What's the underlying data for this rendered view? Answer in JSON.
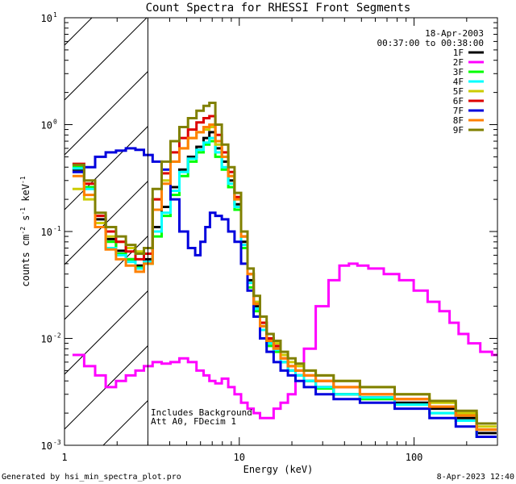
{
  "chart_data": {
    "type": "line",
    "title": "Count Spectra for RHESSI Front Segments",
    "xlabel": "Energy (keV)",
    "ylabel_parts": {
      "pre": "counts cm",
      "exp1": "-2",
      "mid1": " s",
      "exp2": "-1",
      "mid2": " keV",
      "exp3": "-1"
    },
    "x_scale": "log",
    "y_scale": "log",
    "xlim": [
      1.0,
      300.0
    ],
    "ylim": [
      0.001,
      10.0
    ],
    "x_tick_labels": [
      {
        "value": 1,
        "label": "1"
      },
      {
        "value": 10,
        "label": "10"
      },
      {
        "value": 100,
        "label": "100"
      }
    ],
    "y_tick_labels": [
      {
        "value": 0.001,
        "base": "10",
        "exp": "-3"
      },
      {
        "value": 0.01,
        "base": "10",
        "exp": "-2"
      },
      {
        "value": 0.1,
        "base": "10",
        "exp": "-1"
      },
      {
        "value": 1,
        "base": "10",
        "exp": "0"
      },
      {
        "value": 10,
        "base": "10",
        "exp": "1"
      }
    ],
    "hatched_region": [
      1.0,
      3.0
    ],
    "annotations": {
      "date": "18-Apr-2003",
      "time_range": "00:37:00 to 00:38:00",
      "note1": "Includes Background",
      "note2": "Att A0, FDecim 1"
    },
    "series": [
      {
        "name": "1F",
        "color": "#000000",
        "x": [
          1.2,
          1.4,
          1.6,
          1.85,
          2.1,
          2.4,
          2.7,
          3.0,
          3.4,
          3.8,
          4.3,
          4.8,
          5.4,
          6.0,
          6.5,
          7.0,
          7.6,
          8.3,
          9.0,
          9.8,
          10.7,
          11.6,
          12.6,
          13.7,
          15.0,
          16.5,
          18.0,
          20.0,
          22.0,
          25.0,
          30.0,
          40.0,
          60.0,
          100.0,
          150.0,
          200.0,
          260.0
        ],
        "y": [
          0.38,
          0.26,
          0.13,
          0.085,
          0.066,
          0.055,
          0.048,
          0.055,
          0.11,
          0.17,
          0.26,
          0.38,
          0.5,
          0.62,
          0.75,
          0.85,
          0.6,
          0.45,
          0.3,
          0.18,
          0.08,
          0.035,
          0.02,
          0.013,
          0.009,
          0.008,
          0.006,
          0.005,
          0.0045,
          0.004,
          0.0035,
          0.003,
          0.0028,
          0.0025,
          0.0022,
          0.0018,
          0.0013
        ]
      },
      {
        "name": "2F",
        "color": "#ff00ff",
        "x": [
          1.2,
          1.4,
          1.6,
          1.85,
          2.1,
          2.4,
          2.7,
          3.0,
          3.4,
          3.8,
          4.3,
          4.8,
          5.4,
          6.0,
          6.5,
          7.0,
          7.6,
          8.3,
          9.0,
          9.8,
          10.7,
          11.6,
          12.6,
          13.7,
          15.0,
          16.5,
          18.0,
          20.0,
          22.0,
          25.0,
          30.0,
          35.0,
          40.0,
          45.0,
          50.0,
          60.0,
          75.0,
          90.0,
          110.0,
          130.0,
          150.0,
          170.0,
          190.0,
          220.0,
          260.0,
          300.0
        ],
        "y": [
          0.007,
          0.0055,
          0.0045,
          0.0035,
          0.004,
          0.0045,
          0.005,
          0.0055,
          0.006,
          0.0058,
          0.006,
          0.0065,
          0.006,
          0.005,
          0.0045,
          0.004,
          0.0038,
          0.0042,
          0.0035,
          0.003,
          0.0025,
          0.0022,
          0.002,
          0.0018,
          0.0018,
          0.0022,
          0.0025,
          0.003,
          0.0045,
          0.008,
          0.02,
          0.035,
          0.048,
          0.05,
          0.048,
          0.045,
          0.04,
          0.035,
          0.028,
          0.022,
          0.018,
          0.014,
          0.011,
          0.009,
          0.0075,
          0.007
        ]
      },
      {
        "name": "3F",
        "color": "#00ff00",
        "x": [
          1.2,
          1.4,
          1.6,
          1.85,
          2.1,
          2.4,
          2.7,
          3.0,
          3.4,
          3.8,
          4.3,
          4.8,
          5.4,
          6.0,
          6.5,
          7.0,
          7.6,
          8.3,
          9.0,
          9.8,
          10.7,
          11.6,
          12.6,
          13.7,
          15.0,
          16.5,
          18.0,
          20.0,
          22.0,
          25.0,
          30.0,
          40.0,
          60.0,
          100.0,
          150.0,
          200.0,
          260.0
        ],
        "y": [
          0.4,
          0.26,
          0.12,
          0.08,
          0.062,
          0.055,
          0.046,
          0.05,
          0.09,
          0.14,
          0.22,
          0.33,
          0.45,
          0.55,
          0.65,
          0.7,
          0.5,
          0.38,
          0.26,
          0.16,
          0.07,
          0.03,
          0.018,
          0.012,
          0.0085,
          0.0075,
          0.006,
          0.005,
          0.0045,
          0.004,
          0.0034,
          0.003,
          0.0027,
          0.0024,
          0.002,
          0.0017,
          0.0012
        ]
      },
      {
        "name": "4F",
        "color": "#00ffff",
        "x": [
          1.2,
          1.4,
          1.6,
          1.85,
          2.1,
          2.4,
          2.7,
          3.0,
          3.4,
          3.8,
          4.3,
          4.8,
          5.4,
          6.0,
          6.5,
          7.0,
          7.6,
          8.3,
          9.0,
          9.8,
          10.7,
          11.6,
          12.6,
          13.7,
          15.0,
          16.5,
          18.0,
          20.0,
          22.0,
          25.0,
          30.0,
          40.0,
          60.0,
          100.0,
          150.0,
          200.0,
          260.0
        ],
        "y": [
          0.39,
          0.25,
          0.12,
          0.07,
          0.06,
          0.052,
          0.045,
          0.052,
          0.1,
          0.15,
          0.24,
          0.36,
          0.48,
          0.58,
          0.68,
          0.75,
          0.55,
          0.4,
          0.28,
          0.17,
          0.075,
          0.033,
          0.019,
          0.012,
          0.009,
          0.0078,
          0.006,
          0.005,
          0.0045,
          0.004,
          0.0035,
          0.003,
          0.0028,
          0.0024,
          0.002,
          0.0017,
          0.0012
        ]
      },
      {
        "name": "5F",
        "color": "#cccc00",
        "x": [
          1.2,
          1.4,
          1.6,
          1.85,
          2.1,
          2.4,
          2.7,
          3.0,
          3.4,
          3.8,
          4.3,
          4.8,
          5.4,
          6.0,
          6.5,
          7.0,
          7.6,
          8.3,
          9.0,
          9.8,
          10.7,
          11.6,
          12.6,
          13.7,
          15.0,
          16.5,
          18.0,
          20.0,
          22.0,
          25.0,
          30.0,
          40.0,
          60.0,
          100.0,
          150.0,
          200.0,
          260.0
        ],
        "y": [
          0.25,
          0.2,
          0.12,
          0.09,
          0.08,
          0.07,
          0.065,
          0.07,
          0.2,
          0.3,
          0.45,
          0.6,
          0.75,
          0.85,
          0.9,
          0.95,
          0.65,
          0.5,
          0.33,
          0.2,
          0.09,
          0.04,
          0.022,
          0.014,
          0.01,
          0.009,
          0.007,
          0.006,
          0.0055,
          0.005,
          0.0045,
          0.004,
          0.0035,
          0.003,
          0.0025,
          0.002,
          0.0015
        ]
      },
      {
        "name": "6F",
        "color": "#dd0000",
        "x": [
          1.2,
          1.4,
          1.6,
          1.85,
          2.1,
          2.4,
          2.7,
          3.0,
          3.4,
          3.8,
          4.3,
          4.8,
          5.4,
          6.0,
          6.5,
          7.0,
          7.6,
          8.3,
          9.0,
          9.8,
          10.7,
          11.6,
          12.6,
          13.7,
          15.0,
          16.5,
          18.0,
          20.0,
          22.0,
          25.0,
          30.0,
          40.0,
          60.0,
          100.0,
          150.0,
          200.0,
          260.0
        ],
        "y": [
          0.43,
          0.28,
          0.14,
          0.1,
          0.08,
          0.065,
          0.055,
          0.062,
          0.2,
          0.35,
          0.55,
          0.75,
          0.9,
          1.05,
          1.15,
          1.2,
          0.8,
          0.55,
          0.36,
          0.21,
          0.09,
          0.04,
          0.021,
          0.014,
          0.01,
          0.0085,
          0.0065,
          0.0055,
          0.005,
          0.0045,
          0.004,
          0.0035,
          0.003,
          0.0027,
          0.0023,
          0.0019,
          0.0014
        ]
      },
      {
        "name": "7F",
        "color": "#0000dd",
        "x": [
          1.2,
          1.4,
          1.6,
          1.85,
          2.1,
          2.4,
          2.7,
          3.0,
          3.4,
          3.8,
          4.3,
          4.8,
          5.4,
          5.8,
          6.2,
          6.6,
          7.0,
          7.6,
          8.3,
          9.0,
          9.8,
          10.7,
          11.6,
          12.6,
          13.7,
          15.0,
          16.5,
          18.0,
          20.0,
          22.0,
          25.0,
          30.0,
          40.0,
          60.0,
          100.0,
          150.0,
          200.0,
          260.0
        ],
        "y": [
          0.36,
          0.4,
          0.5,
          0.55,
          0.57,
          0.6,
          0.58,
          0.52,
          0.45,
          0.38,
          0.2,
          0.1,
          0.07,
          0.06,
          0.08,
          0.11,
          0.15,
          0.14,
          0.13,
          0.1,
          0.08,
          0.05,
          0.028,
          0.016,
          0.01,
          0.0075,
          0.006,
          0.005,
          0.0045,
          0.004,
          0.0035,
          0.003,
          0.0027,
          0.0025,
          0.0022,
          0.0018,
          0.0015,
          0.0012
        ]
      },
      {
        "name": "8F",
        "color": "#ff8000",
        "x": [
          1.2,
          1.4,
          1.6,
          1.85,
          2.1,
          2.4,
          2.7,
          3.0,
          3.4,
          3.8,
          4.3,
          4.8,
          5.4,
          6.0,
          6.5,
          7.0,
          7.6,
          8.3,
          9.0,
          9.8,
          10.7,
          11.6,
          12.6,
          13.7,
          15.0,
          16.5,
          18.0,
          20.0,
          22.0,
          25.0,
          30.0,
          40.0,
          60.0,
          100.0,
          150.0,
          200.0,
          260.0
        ],
        "y": [
          0.33,
          0.22,
          0.11,
          0.068,
          0.055,
          0.048,
          0.042,
          0.05,
          0.16,
          0.28,
          0.45,
          0.6,
          0.75,
          0.85,
          0.95,
          1.0,
          0.7,
          0.5,
          0.33,
          0.2,
          0.09,
          0.04,
          0.021,
          0.013,
          0.0095,
          0.008,
          0.0065,
          0.0055,
          0.005,
          0.0045,
          0.004,
          0.0035,
          0.003,
          0.0027,
          0.0023,
          0.0019,
          0.0014
        ]
      },
      {
        "name": "9F",
        "color": "#808000",
        "x": [
          1.2,
          1.4,
          1.6,
          1.85,
          2.1,
          2.4,
          2.7,
          3.0,
          3.4,
          3.8,
          4.3,
          4.8,
          5.4,
          6.0,
          6.5,
          7.0,
          7.6,
          8.3,
          9.0,
          9.8,
          10.7,
          11.6,
          12.6,
          13.7,
          15.0,
          16.5,
          18.0,
          20.0,
          22.0,
          25.0,
          30.0,
          40.0,
          60.0,
          100.0,
          150.0,
          200.0,
          260.0
        ],
        "y": [
          0.42,
          0.3,
          0.15,
          0.11,
          0.09,
          0.075,
          0.062,
          0.07,
          0.25,
          0.45,
          0.7,
          0.95,
          1.15,
          1.35,
          1.5,
          1.6,
          1.0,
          0.65,
          0.4,
          0.23,
          0.1,
          0.045,
          0.025,
          0.016,
          0.011,
          0.0095,
          0.0075,
          0.0065,
          0.0058,
          0.005,
          0.0045,
          0.004,
          0.0035,
          0.003,
          0.0026,
          0.0021,
          0.0016
        ]
      }
    ]
  },
  "footer": {
    "generated_by": "Generated by hsi_min_spectra_plot.pro",
    "timestamp": "8-Apr-2023 12:40"
  }
}
